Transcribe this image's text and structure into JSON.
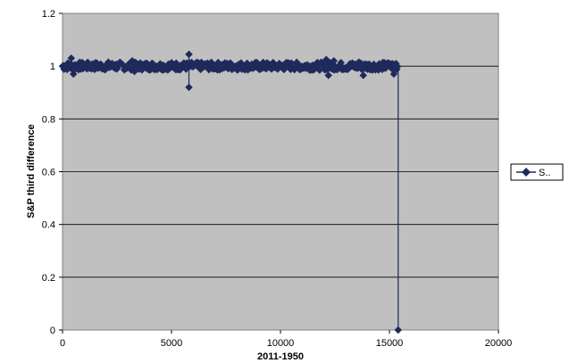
{
  "chart_data": {
    "type": "line",
    "xlabel": "2011-1950",
    "ylabel": "S&P third difference",
    "xlim": [
      0,
      20000
    ],
    "ylim": [
      0,
      1.2
    ],
    "xticks": [
      0,
      5000,
      10000,
      15000,
      20000
    ],
    "yticks": [
      0,
      0.2,
      0.4,
      0.6,
      0.8,
      1,
      1.2
    ],
    "xtick_labels": [
      "0",
      "5000",
      "10000",
      "15000",
      "20000"
    ],
    "ytick_labels": [
      "0",
      "0.2",
      "0.4",
      "0.6",
      "0.8",
      "1",
      "1.2"
    ],
    "grid": "horizontal major gridlines",
    "plot_background": "#c0c0c0",
    "series_color": "#1f2a5c",
    "legend": {
      "placement": "right",
      "label": "S.."
    },
    "series": [
      {
        "name": "S..",
        "x_range": [
          1,
          15400
        ],
        "baseline": 1.0,
        "noise_band": 0.015,
        "spikes": [
          {
            "x": 400,
            "y": 1.03
          },
          {
            "x": 500,
            "y": 0.97
          },
          {
            "x": 2100,
            "y": 1.015
          },
          {
            "x": 3200,
            "y": 1.02
          },
          {
            "x": 3300,
            "y": 0.98
          },
          {
            "x": 5800,
            "y": 1.045
          },
          {
            "x": 5800,
            "y": 0.92
          },
          {
            "x": 12100,
            "y": 1.025
          },
          {
            "x": 12200,
            "y": 0.965
          },
          {
            "x": 12450,
            "y": 1.02
          },
          {
            "x": 13600,
            "y": 1.015
          },
          {
            "x": 13800,
            "y": 0.965
          },
          {
            "x": 15200,
            "y": 0.97
          },
          {
            "x": 15300,
            "y": 1.01
          }
        ],
        "end_point": {
          "x": 15400,
          "y": 0
        }
      }
    ]
  }
}
